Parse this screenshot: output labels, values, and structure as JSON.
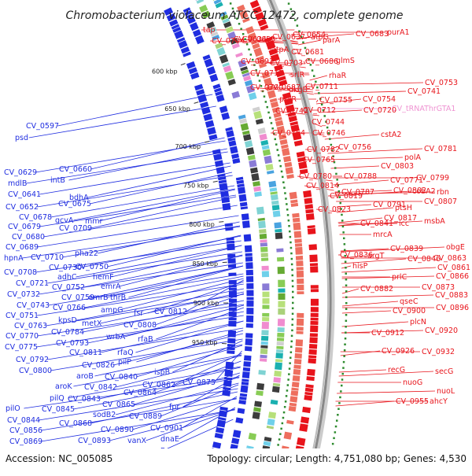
{
  "title": "Chromobacterium violaceum ATCC 12472, complete genome",
  "footer": {
    "accession": "Accession: NC_005085",
    "summary": "Topology: circular; Length: 4,751,080 bp; Genes: 4,530"
  },
  "colors": {
    "forward": "#e8141b",
    "reverse": "#1f2de0",
    "trna": "#ef93d2",
    "backbone": "#888888",
    "gc_tick": "#2e8b2e"
  },
  "ticks": [
    "600 kbp",
    "650 kbp",
    "700 kbp",
    "750 kbp",
    "800 kbp",
    "850 kbp",
    "900 kbp",
    "950 kbp"
  ],
  "right_labels": [
    {
      "text": "tap",
      "type": "fwd"
    },
    {
      "text": "CV_0634",
      "type": "fwd"
    },
    {
      "text": "CV_0637",
      "type": "fwd"
    },
    {
      "text": "CV_0654",
      "type": "fwd"
    },
    {
      "text": "atpG",
      "type": "fwd"
    },
    {
      "text": "CV_0683",
      "type": "fwd"
    },
    {
      "text": "purA1",
      "type": "fwd"
    },
    {
      "text": "CV_0704",
      "type": "fwd"
    },
    {
      "text": "CV_0653",
      "type": "fwd"
    },
    {
      "text": "atpA",
      "type": "fwd"
    },
    {
      "text": "CV_0681",
      "type": "fwd"
    },
    {
      "text": "parA",
      "type": "fwd"
    },
    {
      "text": "glmS",
      "type": "fwd"
    },
    {
      "text": "CV_0691",
      "type": "fwd"
    },
    {
      "text": "CV_0703",
      "type": "fwd"
    },
    {
      "text": "srlR",
      "type": "fwd"
    },
    {
      "text": "CV_0686",
      "type": "fwd"
    },
    {
      "text": "rhaR",
      "type": "fwd"
    },
    {
      "text": "CV_0713",
      "type": "fwd"
    },
    {
      "text": "CV_0687",
      "type": "fwd"
    },
    {
      "text": "dkgB",
      "type": "fwd"
    },
    {
      "text": "CV_0711",
      "type": "fwd"
    },
    {
      "text": "CV_0755",
      "type": "fwd"
    },
    {
      "text": "CV_0700",
      "type": "fwd"
    },
    {
      "text": "ptxR",
      "type": "fwd"
    },
    {
      "text": "CV_0753",
      "type": "fwd"
    },
    {
      "text": "CV_0742",
      "type": "fwd"
    },
    {
      "text": "CV_0712",
      "type": "fwd"
    },
    {
      "text": "CV_0741",
      "type": "fwd"
    },
    {
      "text": "CV_0754",
      "type": "fwd"
    },
    {
      "text": "CV_tRNAThrGTA1",
      "type": "trna"
    },
    {
      "text": "CV_0720",
      "type": "fwd"
    },
    {
      "text": "CV_0744",
      "type": "fwd"
    },
    {
      "text": "CV_0764",
      "type": "fwd"
    },
    {
      "text": "CV_0746",
      "type": "fwd"
    },
    {
      "text": "cstA2",
      "type": "fwd"
    },
    {
      "text": "CV_0782",
      "type": "fwd"
    },
    {
      "text": "CV_0756",
      "type": "fwd"
    },
    {
      "text": "CV_0781",
      "type": "fwd"
    },
    {
      "text": "CV_0765",
      "type": "fwd"
    },
    {
      "text": "polA",
      "type": "fwd"
    },
    {
      "text": "CV_0780",
      "type": "fwd"
    },
    {
      "text": "CV_0788",
      "type": "fwd"
    },
    {
      "text": "CV_0803",
      "type": "fwd"
    },
    {
      "text": "CV_0771",
      "type": "fwd"
    },
    {
      "text": "CV_0799",
      "type": "fwd"
    },
    {
      "text": "rbn",
      "type": "fwd"
    },
    {
      "text": "CV_0814",
      "type": "fwd"
    },
    {
      "text": "CV_0787",
      "type": "fwd"
    },
    {
      "text": "CV_0802",
      "type": "fwd"
    },
    {
      "text": "cobA2",
      "type": "fwd"
    },
    {
      "text": "CV_0819",
      "type": "fwd"
    },
    {
      "text": "CV_0791",
      "type": "fwd"
    },
    {
      "text": "ptsH",
      "type": "fwd"
    },
    {
      "text": "CV_0807",
      "type": "fwd"
    },
    {
      "text": "CV_0823",
      "type": "fwd"
    },
    {
      "text": "CV_0817",
      "type": "fwd"
    },
    {
      "text": "icc",
      "type": "fwd"
    },
    {
      "text": "CV_0841",
      "type": "fwd"
    },
    {
      "text": "msbA",
      "type": "fwd"
    },
    {
      "text": "mrcA",
      "type": "fwd"
    },
    {
      "text": "CV_0839",
      "type": "fwd"
    },
    {
      "text": "obgE",
      "type": "fwd"
    },
    {
      "text": "CV_0836",
      "type": "fwd"
    },
    {
      "text": "argT",
      "type": "fwd"
    },
    {
      "text": "CV_0846",
      "type": "fwd"
    },
    {
      "text": "CV_0863",
      "type": "fwd"
    },
    {
      "text": "hisP",
      "type": "fwd"
    },
    {
      "text": "CV_0861",
      "type": "fwd"
    },
    {
      "text": "prlC",
      "type": "fwd"
    },
    {
      "text": "CV_0866",
      "type": "fwd"
    },
    {
      "text": "CV_0882",
      "type": "fwd"
    },
    {
      "text": "CV_0873",
      "type": "fwd"
    },
    {
      "text": "CV_0883",
      "type": "fwd"
    },
    {
      "text": "qseC",
      "type": "fwd"
    },
    {
      "text": "CV_0896",
      "type": "fwd"
    },
    {
      "text": "CV_0900",
      "type": "fwd"
    },
    {
      "text": "plcN",
      "type": "fwd"
    },
    {
      "text": "CV_0912",
      "type": "fwd"
    },
    {
      "text": "CV_0920",
      "type": "fwd"
    },
    {
      "text": "CV_0926",
      "type": "fwd"
    },
    {
      "text": "CV_0932",
      "type": "fwd"
    },
    {
      "text": "recG",
      "type": "fwd"
    },
    {
      "text": "secG",
      "type": "fwd"
    },
    {
      "text": "nuoG",
      "type": "fwd"
    },
    {
      "text": "nuoL",
      "type": "fwd"
    },
    {
      "text": "CV_0955",
      "type": "fwd"
    },
    {
      "text": "ahcY",
      "type": "fwd"
    }
  ],
  "left_labels": [
    {
      "text": "CV_0597"
    },
    {
      "text": "psd"
    },
    {
      "text": "CV_0629"
    },
    {
      "text": "CV_0660"
    },
    {
      "text": "mdlB"
    },
    {
      "text": "intB"
    },
    {
      "text": "CV_0641"
    },
    {
      "text": "CV_0652"
    },
    {
      "text": "CV_0675"
    },
    {
      "text": "CV_0678"
    },
    {
      "text": "bdhA"
    },
    {
      "text": "CV_0679"
    },
    {
      "text": "gcvA"
    },
    {
      "text": "CV_0680"
    },
    {
      "text": "mmr"
    },
    {
      "text": "CV_0709"
    },
    {
      "text": "CV_0689"
    },
    {
      "text": "pha22"
    },
    {
      "text": "hpnA"
    },
    {
      "text": "CV_0710"
    },
    {
      "text": "CV_0730"
    },
    {
      "text": "CV_0750"
    },
    {
      "text": "CV_0708"
    },
    {
      "text": "adhC"
    },
    {
      "text": "hemF"
    },
    {
      "text": "CV_0721"
    },
    {
      "text": "CV_0752"
    },
    {
      "text": "emrA"
    },
    {
      "text": "CV_0732"
    },
    {
      "text": "CV_0759"
    },
    {
      "text": "emrB"
    },
    {
      "text": "thrB"
    },
    {
      "text": "CV_0743"
    },
    {
      "text": "CV_0766"
    },
    {
      "text": "ampG"
    },
    {
      "text": "fsr"
    },
    {
      "text": "CV_0812"
    },
    {
      "text": "CV_0751"
    },
    {
      "text": "kpsD"
    },
    {
      "text": "metX"
    },
    {
      "text": "CV_0808"
    },
    {
      "text": "CV_0763"
    },
    {
      "text": "CV_0784"
    },
    {
      "text": "wrbA"
    },
    {
      "text": "CV_0770"
    },
    {
      "text": "CV_0793"
    },
    {
      "text": "rfaB"
    },
    {
      "text": "CV_0775"
    },
    {
      "text": "CV_0811"
    },
    {
      "text": "rfaQ"
    },
    {
      "text": "CV_0792"
    },
    {
      "text": "pilP"
    },
    {
      "text": "CV_0826"
    },
    {
      "text": "CV_0800"
    },
    {
      "text": "aroB"
    },
    {
      "text": "CV_0840"
    },
    {
      "text": "ispB"
    },
    {
      "text": "CV_0862"
    },
    {
      "text": "CV_0875"
    },
    {
      "text": "aroK"
    },
    {
      "text": "CV_0842"
    },
    {
      "text": "CV_0864"
    },
    {
      "text": "pilQ"
    },
    {
      "text": "CV_0843"
    },
    {
      "text": "CV_0865"
    },
    {
      "text": "pilO"
    },
    {
      "text": "CV_0845"
    },
    {
      "text": "sodB2"
    },
    {
      "text": "CV_0844"
    },
    {
      "text": "CV_0868"
    },
    {
      "text": "CV_0889"
    },
    {
      "text": "fpr"
    },
    {
      "text": "CV_0856"
    },
    {
      "text": "CV_0890"
    },
    {
      "text": "CV_0901"
    },
    {
      "text": "CV_0869"
    },
    {
      "text": "CV_0893"
    },
    {
      "text": "vanX"
    },
    {
      "text": "dnaE"
    },
    {
      "text": "maeB"
    }
  ]
}
